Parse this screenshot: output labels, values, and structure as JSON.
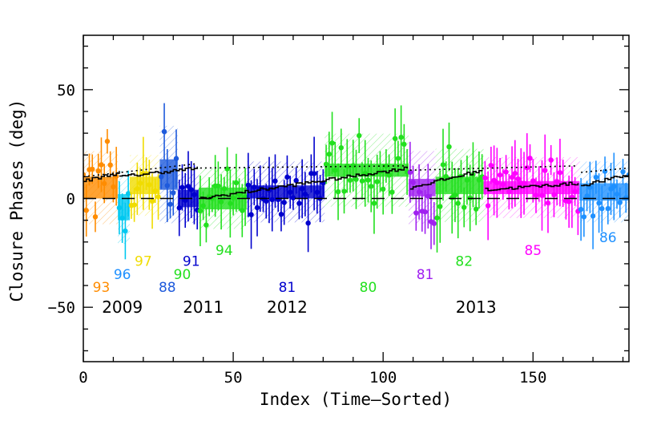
{
  "chart_data": {
    "type": "scatter",
    "title": "",
    "xlabel": "Index (Time–Sorted)",
    "ylabel": "Closure Phases (deg)",
    "xlim": [
      0,
      182
    ],
    "ylim": [
      -75,
      75
    ],
    "x_ticks": [
      0,
      50,
      100,
      150
    ],
    "y_ticks": [
      -50,
      0,
      50
    ],
    "grid": false,
    "colors": {
      "orange": "#ff8c00",
      "cyan": "#00c8f0",
      "skyblue": "#1e90ff",
      "yellow": "#f0dc00",
      "blue": "#1e5adc",
      "navy": "#0000cd",
      "green": "#22e01e",
      "purple": "#a020f0",
      "magenta": "#ff00ff"
    },
    "groups": [
      {
        "color": "orange",
        "x": [
          0,
          11
        ],
        "y_mean": 5,
        "y_err": 5,
        "noise": 12
      },
      {
        "color": "cyan",
        "x": [
          12,
          15
        ],
        "y_mean": -4,
        "y_err": 6,
        "noise": 12
      },
      {
        "color": "yellow",
        "x": [
          16,
          25
        ],
        "y_mean": 6,
        "y_err": 4,
        "noise": 10
      },
      {
        "color": "blue",
        "x": [
          26,
          31
        ],
        "y_mean": 11,
        "y_err": 7,
        "noise": 16
      },
      {
        "color": "navy",
        "x": [
          32,
          38
        ],
        "y_mean": 0,
        "y_err": 4,
        "noise": 8
      },
      {
        "color": "green",
        "x": [
          39,
          54
        ],
        "y_mean": 0,
        "y_err": 5,
        "noise": 10
      },
      {
        "color": "navy",
        "x": [
          55,
          80
        ],
        "y_mean": 3,
        "y_err": 3,
        "noise": 10
      },
      {
        "color": "green",
        "x": [
          81,
          108
        ],
        "y_mean": 13,
        "y_err": 3,
        "noise": 12
      },
      {
        "color": "purple",
        "x": [
          109,
          117
        ],
        "y_mean": 5,
        "y_err": 4,
        "noise": 12
      },
      {
        "color": "green",
        "x": [
          118,
          133
        ],
        "y_mean": 6,
        "y_err": 4,
        "noise": 12
      },
      {
        "color": "magenta",
        "x": [
          134,
          165
        ],
        "y_mean": 5,
        "y_err": 3,
        "noise": 10
      },
      {
        "color": "skyblue",
        "x": [
          166,
          182
        ],
        "y_mean": 3,
        "y_err": 4,
        "noise": 10
      }
    ],
    "reference_line": {
      "style": "dashed",
      "y": 0
    },
    "model_solid": [
      {
        "x": [
          0,
          12
        ],
        "y0": 8,
        "y1": 12
      },
      {
        "x": [
          12,
          38
        ],
        "y0": 10,
        "y1": 14
      },
      {
        "x": [
          39,
          108
        ],
        "y0": 0,
        "y1": 14
      },
      {
        "x": [
          109,
          133
        ],
        "y0": 5,
        "y1": 13
      },
      {
        "x": [
          134,
          165
        ],
        "y0": 4,
        "y1": 7
      },
      {
        "x": [
          166,
          182
        ],
        "y0": 6,
        "y1": 11
      }
    ],
    "model_dotted": [
      {
        "x": [
          0,
          38
        ],
        "y0": 10,
        "y1": 16
      },
      {
        "x": [
          39,
          108
        ],
        "y0": 14,
        "y1": 15
      },
      {
        "x": [
          109,
          165
        ],
        "y0": 13,
        "y1": 15
      },
      {
        "x": [
          166,
          182
        ],
        "y0": 12,
        "y1": 14
      }
    ],
    "track_labels": [
      {
        "text": "93",
        "color": "orange",
        "x": 6,
        "y": -43
      },
      {
        "text": "96",
        "color": "skyblue",
        "x": 13,
        "y": -37
      },
      {
        "text": "97",
        "color": "yellow",
        "x": 20,
        "y": -31
      },
      {
        "text": "88",
        "color": "blue",
        "x": 28,
        "y": -43
      },
      {
        "text": "90",
        "color": "green",
        "x": 33,
        "y": -37
      },
      {
        "text": "91",
        "color": "navy",
        "x": 36,
        "y": -31
      },
      {
        "text": "94",
        "color": "green",
        "x": 47,
        "y": -26
      },
      {
        "text": "81",
        "color": "navy",
        "x": 68,
        "y": -43
      },
      {
        "text": "80",
        "color": "green",
        "x": 95,
        "y": -43
      },
      {
        "text": "81",
        "color": "purple",
        "x": 114,
        "y": -37
      },
      {
        "text": "82",
        "color": "green",
        "x": 127,
        "y": -31
      },
      {
        "text": "85",
        "color": "magenta",
        "x": 150,
        "y": -26
      },
      {
        "text": "86",
        "color": "skyblue",
        "x": 175,
        "y": -20
      }
    ],
    "year_labels": [
      {
        "text": "2009",
        "x": 13,
        "y": -50
      },
      {
        "text": "2011",
        "x": 40,
        "y": -50
      },
      {
        "text": "2012",
        "x": 68,
        "y": -50
      },
      {
        "text": "2013",
        "x": 131,
        "y": -50
      }
    ]
  }
}
